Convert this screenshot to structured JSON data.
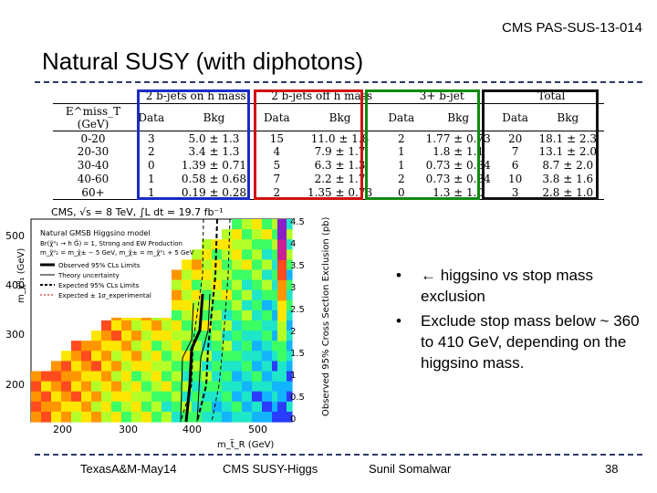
{
  "slide": {
    "reference": "CMS PAS-SUS-13-014",
    "title": "Natural SUSY (with diphotons)"
  },
  "table": {
    "header_groups": [
      "",
      "2 b-jets on h mass",
      "2 b-jets off h mass",
      "3+ b-jet",
      "Total"
    ],
    "subheaders": [
      "E^miss_T (GeV)",
      "Data",
      "Bkg",
      "Data",
      "Bkg",
      "Data",
      "Bkg",
      "Data",
      "Bkg"
    ],
    "rows": [
      [
        "0-20",
        "3",
        "5.0 ± 1.3",
        "15",
        "11.0 ± 1.8",
        "2",
        "1.77 ± 0.73",
        "20",
        "18.1 ± 2.3"
      ],
      [
        "20-30",
        "2",
        "3.4 ± 1.3",
        "4",
        "7.9 ± 1.7",
        "1",
        "1.8 ± 1.1",
        "7",
        "13.1 ± 2.0"
      ],
      [
        "30-40",
        "0",
        "1.39 ± 0.71",
        "5",
        "6.3 ± 1.3",
        "1",
        "0.73 ± 0.84",
        "6",
        "8.7 ± 2.0"
      ],
      [
        "40-60",
        "1",
        "0.58 ± 0.68",
        "7",
        "2.2 ± 1.7",
        "2",
        "0.73 ± 0.84",
        "10",
        "3.8 ± 1.6"
      ],
      [
        "60+",
        "1",
        "0.19 ± 0.28",
        "2",
        "1.35 ± 0.73",
        "0",
        "1.3 ± 1.0",
        "3",
        "2.8 ± 1.0"
      ]
    ]
  },
  "plot": {
    "header": "CMS, √s = 8 TeV, ∫L dt = 19.7 fb⁻¹",
    "legend_title": "Natural GMSB Higgsino model",
    "legend_lines": [
      "Br(χ̃⁰₁ → h G̃) = 1, Strong and EW Production",
      "m_χ̃⁰₂ = m_χ̃± − 5 GeV, m_χ̃± = m_χ̃⁰₁ + 5 GeV"
    ],
    "legend_entries": [
      "Observed 95% CLs Limits",
      "Theory uncertainty",
      "Expected 95% CLs Limits",
      "Expected ± 1σ_experimental"
    ],
    "ylabel": "m_χ̃⁰₁ (GeV)",
    "xlabel": "m_t̃_R (GeV)",
    "zlabel": "Observed 95% Cross Section Exclusion (pb)",
    "xticks": [
      "200",
      "300",
      "400",
      "500"
    ],
    "yticks": [
      "500",
      "400",
      "300",
      "200"
    ],
    "zticks": [
      "0",
      "0.5",
      "1",
      "1.5",
      "2",
      "2.5",
      "3",
      "3.5",
      "4",
      "4.5"
    ],
    "colors": {
      "z_scale": [
        "#2a3cff",
        "#12b4ff",
        "#1ee6c8",
        "#3cff64",
        "#b4ff28",
        "#ffe600",
        "#ff9600",
        "#ff4b1e",
        "#cc1e96",
        "#8c1ec8"
      ]
    }
  },
  "bullets": [
    "← higgsino vs stop mass exclusion",
    "Exclude stop mass below ~ 360 to 410 GeV, depending on the higgsino mass."
  ],
  "footer": {
    "left": "TexasA&M-May14",
    "center": "CMS SUSY-Higgs",
    "author": "Sunil Somalwar",
    "page": "38"
  }
}
